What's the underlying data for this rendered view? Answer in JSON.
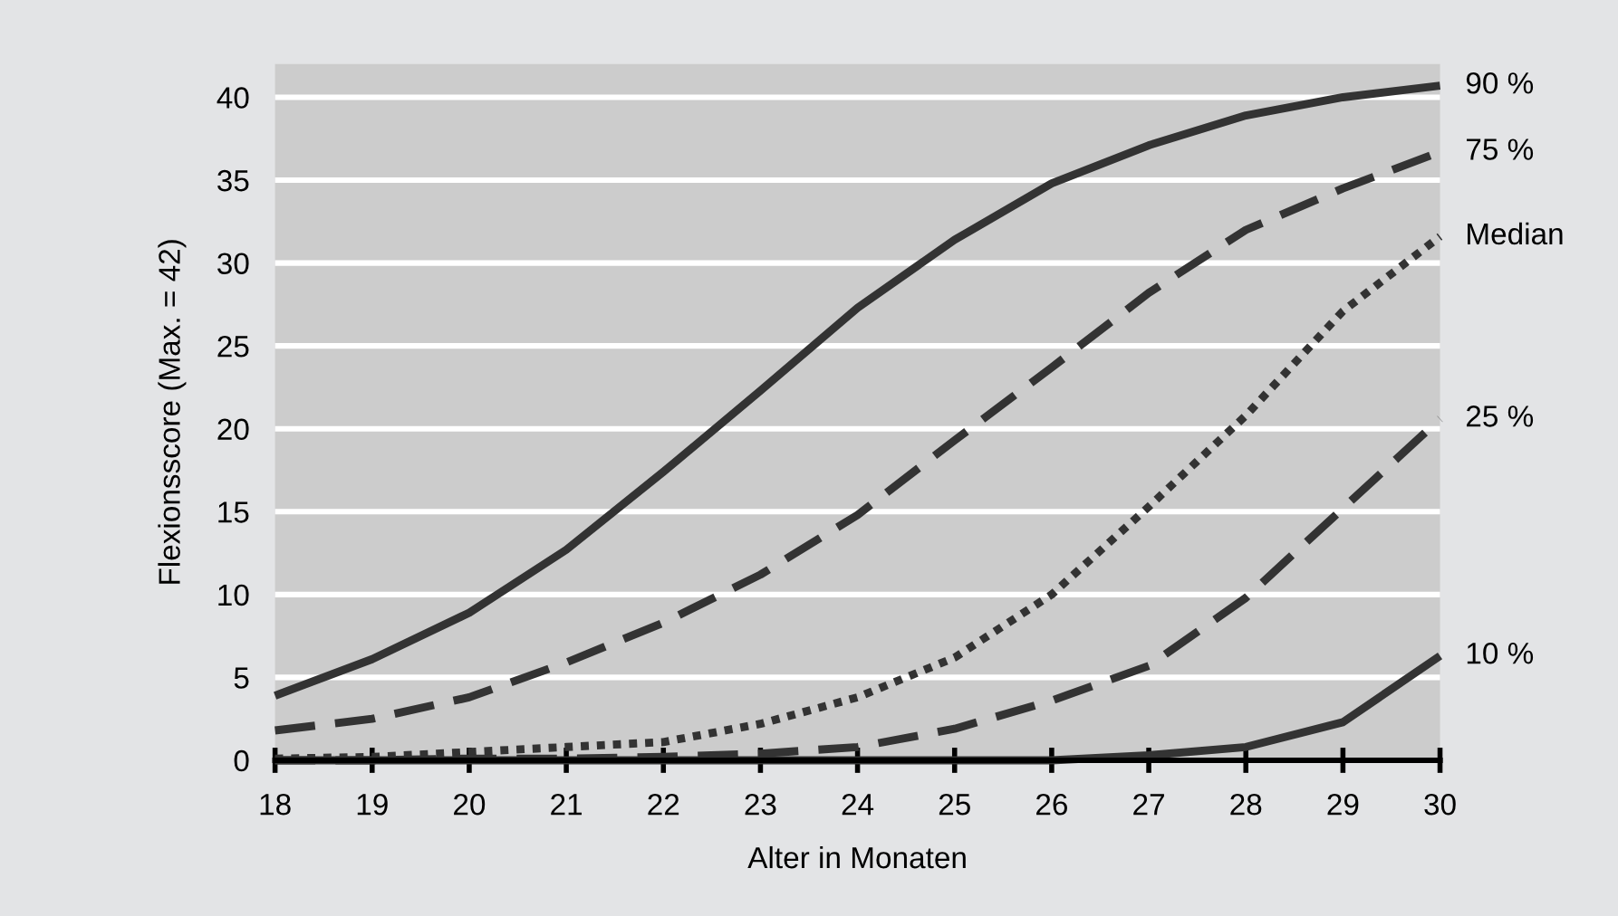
{
  "chart_data": {
    "type": "line",
    "xlabel": "Alter in Monaten",
    "ylabel": "Flexionsscore (Max. = 42)",
    "x": [
      18,
      19,
      20,
      21,
      22,
      23,
      24,
      25,
      26,
      27,
      28,
      29,
      30
    ],
    "xlim": [
      18,
      30
    ],
    "xticks": [
      18,
      19,
      20,
      21,
      22,
      23,
      24,
      25,
      26,
      27,
      28,
      29,
      30
    ],
    "ylim": [
      0,
      42
    ],
    "yticks": [
      0,
      5,
      10,
      15,
      20,
      25,
      30,
      35,
      40
    ],
    "grid": "y",
    "legend": false,
    "marker": "none",
    "series": [
      {
        "name": "90 %",
        "color": "#333333",
        "line_style": "solid",
        "values": [
          3.9,
          6.1,
          8.9,
          12.7,
          17.4,
          22.3,
          27.3,
          31.4,
          34.8,
          37.1,
          38.9,
          40.0,
          40.7
        ]
      },
      {
        "name": "75 %",
        "color": "#333333",
        "line_style": "dashed",
        "values": [
          1.8,
          2.5,
          3.8,
          5.9,
          8.3,
          11.2,
          14.8,
          19.3,
          23.7,
          28.2,
          32.0,
          34.5,
          36.7
        ]
      },
      {
        "name": "Median",
        "color": "#333333",
        "line_style": "dotted",
        "values": [
          0.1,
          0.2,
          0.5,
          0.8,
          1.1,
          2.2,
          3.8,
          6.2,
          10.0,
          15.3,
          20.8,
          27.1,
          31.6
        ]
      },
      {
        "name": "25 %",
        "color": "#333333",
        "line_style": "dashed",
        "values": [
          0,
          0,
          0.1,
          0.1,
          0.2,
          0.4,
          0.8,
          1.9,
          3.6,
          5.7,
          9.8,
          15.2,
          20.6
        ]
      },
      {
        "name": "10 %",
        "color": "#333333",
        "line_style": "solid",
        "values": [
          0,
          0,
          0,
          0,
          0,
          0,
          0,
          0,
          0,
          0.3,
          0.8,
          2.3,
          6.3
        ]
      }
    ]
  }
}
